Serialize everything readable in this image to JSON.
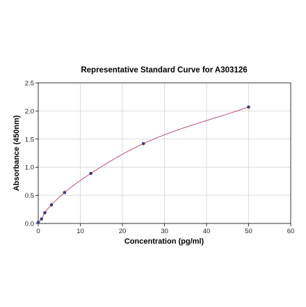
{
  "chart_data": {
    "type": "scatter",
    "title": "Representative Standard Curve for A303126",
    "xlabel": "Concentration (pg/ml)",
    "ylabel": "Absorbance (450nm)",
    "xlim": [
      0,
      60
    ],
    "ylim": [
      0,
      2.5
    ],
    "x_ticks": [
      "0",
      "10",
      "20",
      "30",
      "40",
      "50",
      "60"
    ],
    "y_ticks": [
      "0.0",
      "0.5",
      "1.0",
      "1.5",
      "2.0",
      "2.5"
    ],
    "grid": true,
    "legend": "none",
    "series": [
      {
        "x": [
          0,
          0.78,
          1.56,
          3.13,
          6.25,
          12.5,
          25,
          50
        ],
        "y": [
          0.02,
          0.08,
          0.19,
          0.33,
          0.55,
          0.89,
          1.42,
          2.07
        ],
        "marker_color": "#3d3d7a",
        "fit_line": true,
        "fit_line_color": "#c0506a"
      }
    ]
  }
}
